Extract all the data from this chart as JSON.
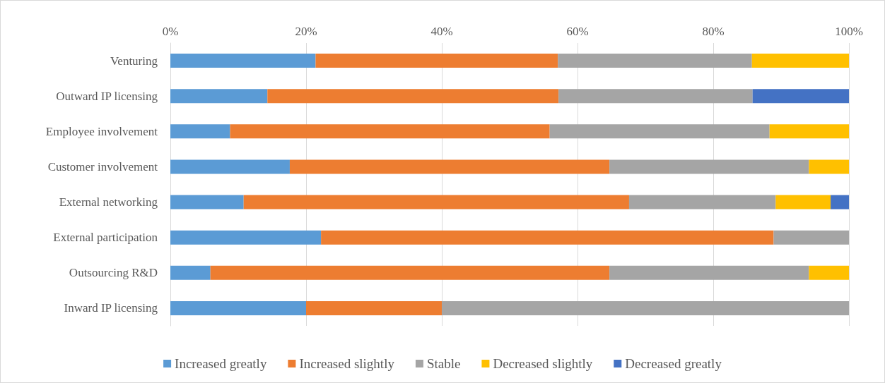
{
  "chart_data": {
    "type": "bar",
    "orientation": "horizontal",
    "stacked": true,
    "categories": [
      "Venturing",
      "Outward IP licensing",
      "Employee involvement",
      "Customer involvement",
      "External networking",
      "External participation",
      "Outsourcing R&D",
      "Inward IP licensing"
    ],
    "series": [
      {
        "name": "Increased greatly",
        "color": "#5b9bd5",
        "values": [
          21.4,
          14.3,
          8.8,
          17.6,
          10.8,
          22.2,
          5.9,
          20
        ]
      },
      {
        "name": "Increased slightly",
        "color": "#ed7d31",
        "values": [
          35.7,
          42.9,
          47.1,
          47.1,
          56.8,
          66.7,
          58.8,
          20
        ]
      },
      {
        "name": "Stable",
        "color": "#a5a5a5",
        "values": [
          28.6,
          28.6,
          32.4,
          29.4,
          21.6,
          11.1,
          29.4,
          60
        ]
      },
      {
        "name": "Decreased slightly",
        "color": "#ffc000",
        "values": [
          14.3,
          0,
          11.8,
          5.9,
          8.1,
          0,
          5.9,
          0
        ]
      },
      {
        "name": "Decreased greatly",
        "color": "#4472c4",
        "values": [
          0,
          14.3,
          0,
          0,
          2.7,
          0,
          0,
          0
        ]
      }
    ],
    "xlim": [
      0,
      100
    ],
    "xticks": [
      {
        "value": 0,
        "label": "0%"
      },
      {
        "value": 20,
        "label": "20%"
      },
      {
        "value": 40,
        "label": "40%"
      },
      {
        "value": 60,
        "label": "60%"
      },
      {
        "value": 80,
        "label": "80%"
      },
      {
        "value": 100,
        "label": "100%"
      }
    ],
    "grid": "x",
    "legend": "bottom"
  }
}
